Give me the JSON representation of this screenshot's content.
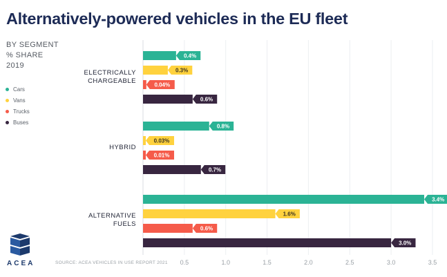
{
  "title": "Alternatively-powered vehicles in the EU fleet",
  "subtitle_lines": [
    "BY SEGMENT",
    "% SHARE",
    "2019"
  ],
  "source": "SOURCE: ACEA VEHICLES IN USE REPORT 2021",
  "logo_text": "ACEA",
  "chart_data": {
    "type": "bar",
    "orientation": "horizontal",
    "categories": [
      "ELECTRICALLY CHARGEABLE",
      "HYBRID",
      "ALTERNATIVE FUELS"
    ],
    "category_label_lines": [
      [
        "ELECTRICALLY",
        "CHARGEABLE"
      ],
      [
        "HYBRID"
      ],
      [
        "ALTERNATIVE",
        "FUELS"
      ]
    ],
    "series": [
      {
        "name": "Cars",
        "color": "#2bb395",
        "values": [
          0.4,
          0.8,
          3.4
        ],
        "labels": [
          "0.4%",
          "0.8%",
          "3.4%"
        ]
      },
      {
        "name": "Vans",
        "color": "#ffd23e",
        "values": [
          0.3,
          0.03,
          1.6
        ],
        "labels": [
          "0.3%",
          "0.03%",
          "1.6%"
        ]
      },
      {
        "name": "Trucks",
        "color": "#f55b4a",
        "values": [
          0.04,
          0.01,
          0.6
        ],
        "labels": [
          "0.04%",
          "0.01%",
          "0.6%"
        ]
      },
      {
        "name": "Buses",
        "color": "#382640",
        "values": [
          0.6,
          0.7,
          3.0
        ],
        "labels": [
          "0.6%",
          "0.7%",
          "3.0%"
        ]
      }
    ],
    "xlim": [
      0,
      3.5
    ],
    "xticks": [
      0.5,
      1.0,
      1.5,
      2.0,
      2.5,
      3.0,
      3.5
    ],
    "xtick_labels": [
      "0.5",
      "1.0",
      "1.5",
      "2.0",
      "2.5",
      "3.0",
      "3.5"
    ],
    "grid": true,
    "legend_position": "left"
  }
}
